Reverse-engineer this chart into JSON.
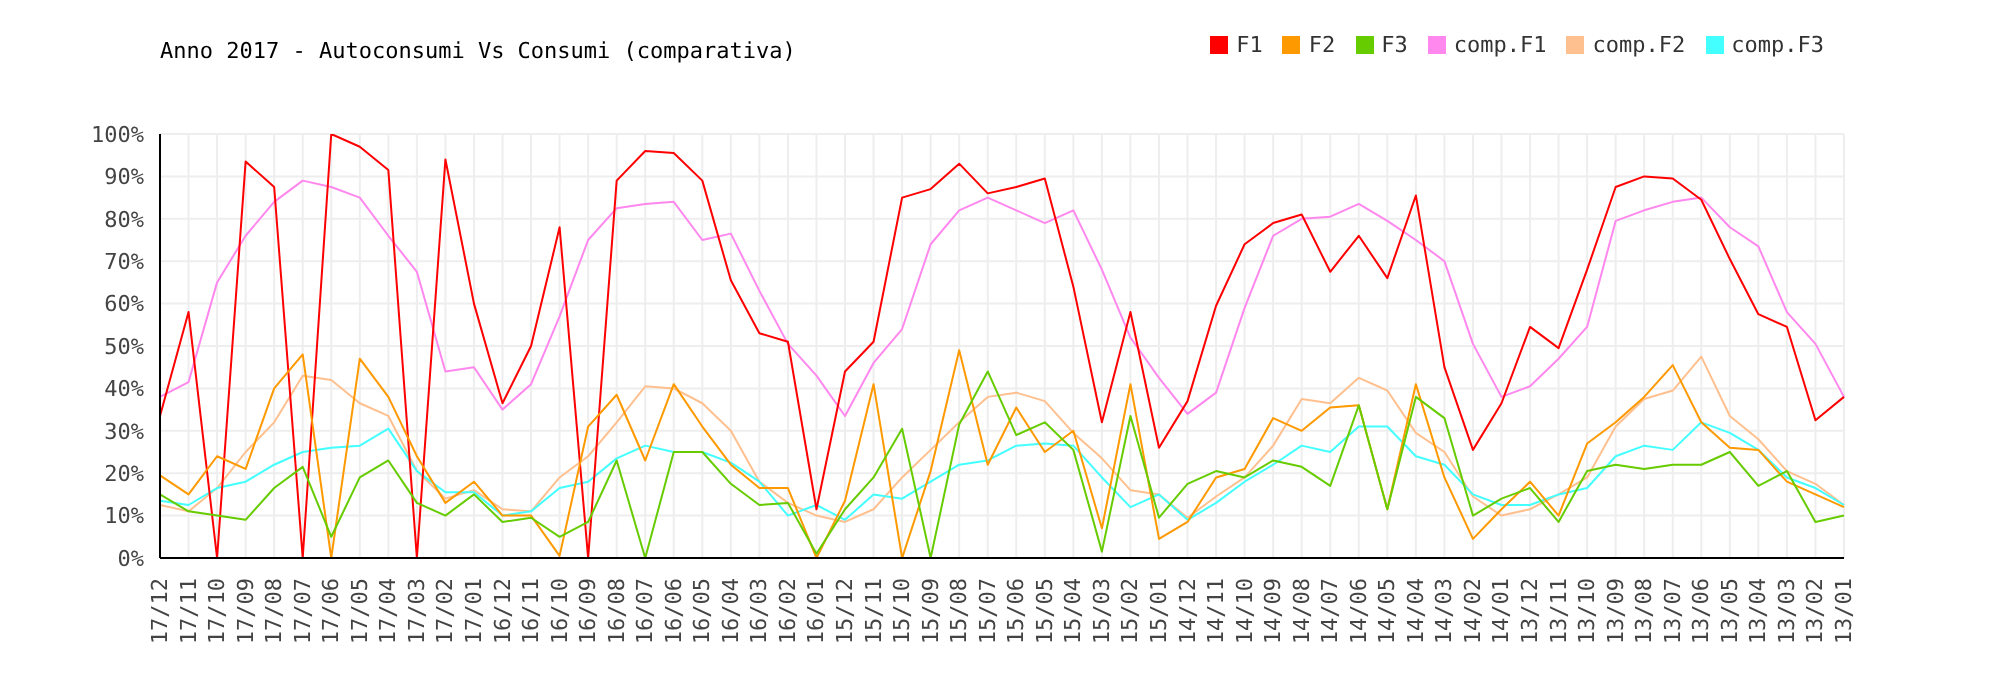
{
  "chart_data": {
    "type": "line",
    "title": "Anno 2017 - Autoconsumi Vs Consumi (comparativa)",
    "categories": [
      "17/12",
      "17/11",
      "17/10",
      "17/09",
      "17/08",
      "17/07",
      "17/06",
      "17/05",
      "17/04",
      "17/03",
      "17/02",
      "17/01",
      "16/12",
      "16/11",
      "16/10",
      "16/09",
      "16/08",
      "16/07",
      "16/06",
      "16/05",
      "16/04",
      "16/03",
      "16/02",
      "16/01",
      "15/12",
      "15/11",
      "15/10",
      "15/09",
      "15/08",
      "15/07",
      "15/06",
      "15/05",
      "15/04",
      "15/03",
      "15/02",
      "15/01",
      "14/12",
      "14/11",
      "14/10",
      "14/09",
      "14/08",
      "14/07",
      "14/06",
      "14/05",
      "14/04",
      "14/03",
      "14/02",
      "14/01",
      "13/12",
      "13/11",
      "13/10",
      "13/09",
      "13/08",
      "13/07",
      "13/06",
      "13/05",
      "13/04",
      "13/03",
      "13/02",
      "13/01"
    ],
    "series": [
      {
        "name": "comp.F1",
        "color": "#ff88ee",
        "values": [
          38,
          41.5,
          65,
          76,
          84,
          89,
          87.5,
          85,
          76,
          67.5,
          44,
          45,
          35,
          41,
          57,
          75,
          82.5,
          83.5,
          84,
          75,
          76.5,
          63,
          50.5,
          43,
          33.5,
          46,
          54,
          74,
          82,
          85,
          82,
          79,
          82,
          68,
          52,
          42.5,
          34,
          39,
          59,
          76,
          80,
          80.5,
          83.5,
          79.5,
          75,
          70,
          50.5,
          38,
          40.5,
          47,
          54.5,
          79.5,
          82,
          84,
          85,
          78,
          73.5,
          58,
          50.5,
          38
        ]
      },
      {
        "name": "comp.F2",
        "color": "#ffc090",
        "values": [
          12.5,
          11,
          16.5,
          25,
          32,
          43,
          42,
          36.5,
          33.5,
          20.5,
          14,
          16,
          11.5,
          11,
          19,
          24,
          32,
          40.5,
          40,
          36.5,
          30,
          18,
          13,
          10,
          8.5,
          11.5,
          19,
          25.5,
          32,
          38,
          39,
          37,
          29.5,
          23.5,
          16,
          15,
          9.5,
          14.5,
          19,
          26.5,
          37.5,
          36.5,
          42.5,
          39.5,
          29.5,
          25,
          14.5,
          10,
          11.5,
          15,
          19,
          31,
          37.5,
          39.5,
          47.5,
          33.5,
          28,
          20.5,
          17.5,
          12.5
        ]
      },
      {
        "name": "comp.F3",
        "color": "#44ffff",
        "values": [
          13.5,
          12.5,
          16.5,
          18,
          22,
          25,
          26,
          26.5,
          30.5,
          20.5,
          15.5,
          15.5,
          10,
          11,
          16.5,
          18,
          23.5,
          26.5,
          25,
          25,
          22.5,
          18,
          10,
          12.5,
          9,
          15,
          14,
          18,
          22,
          23,
          26.5,
          27,
          26.5,
          19,
          12,
          15,
          9,
          13,
          18,
          22,
          26.5,
          25,
          31,
          31,
          24,
          22,
          15,
          12.5,
          12.5,
          15,
          16.5,
          24,
          26.5,
          25.5,
          32,
          29.5,
          25.5,
          19,
          16.5,
          12.5
        ]
      },
      {
        "name": "F1",
        "color": "#ff0000",
        "values": [
          33.5,
          58,
          0,
          93.5,
          87.5,
          0,
          100,
          97,
          91.5,
          0,
          94,
          60,
          36.5,
          50,
          78,
          0,
          89,
          96,
          95.5,
          89,
          65.5,
          53,
          51,
          11.5,
          44,
          51,
          85,
          87,
          93,
          86,
          87.5,
          89.5,
          64,
          32,
          58,
          26,
          37,
          59.5,
          74,
          79,
          81,
          67.5,
          76,
          66,
          85.5,
          45,
          25.5,
          36.5,
          54.5,
          49.5,
          68,
          87.5,
          90,
          89.5,
          84.5,
          70.5,
          57.5,
          54.5,
          32.5,
          38
        ]
      },
      {
        "name": "F2",
        "color": "#ff9900",
        "values": [
          19.5,
          15,
          24,
          21,
          40,
          48,
          0,
          47,
          38,
          24,
          13,
          18,
          10,
          10,
          0.5,
          31,
          38.5,
          23,
          41,
          31,
          22,
          16.5,
          16.5,
          0,
          13.5,
          41,
          0,
          20.5,
          49,
          22,
          35.5,
          25,
          30,
          7,
          41,
          4.5,
          8.5,
          19,
          21,
          33,
          30,
          35.5,
          36,
          11.5,
          41,
          19,
          4.5,
          11.5,
          18,
          10,
          27,
          32,
          38,
          45.5,
          32,
          26,
          25.5,
          18,
          15,
          12
        ]
      },
      {
        "name": "F3",
        "color": "#66cc00",
        "values": [
          15,
          11,
          10,
          9,
          16.5,
          21.5,
          5,
          19,
          23,
          13,
          10,
          15,
          8.5,
          9.5,
          5,
          8.5,
          23,
          0,
          25,
          25,
          17.5,
          12.5,
          13,
          1,
          11.5,
          19,
          30.5,
          0,
          31.5,
          44,
          29,
          32,
          25.5,
          1.5,
          33.5,
          9.5,
          17.5,
          20.5,
          19,
          23,
          21.5,
          17,
          36,
          11.5,
          38,
          33,
          10,
          14,
          16.5,
          8.5,
          20.5,
          22,
          21,
          22,
          22,
          25,
          17,
          20.5,
          8.5,
          10
        ]
      }
    ],
    "ylim": [
      0,
      100
    ],
    "yticks": [
      {
        "value": 0,
        "label": "0%"
      },
      {
        "value": 10,
        "label": "10%"
      },
      {
        "value": 20,
        "label": "20%"
      },
      {
        "value": 30,
        "label": "30%"
      },
      {
        "value": 40,
        "label": "40%"
      },
      {
        "value": 50,
        "label": "50%"
      },
      {
        "value": 60,
        "label": "60%"
      },
      {
        "value": 70,
        "label": "70%"
      },
      {
        "value": 80,
        "label": "80%"
      },
      {
        "value": 90,
        "label": "90%"
      },
      {
        "value": 100,
        "label": "100%"
      }
    ],
    "grid": true,
    "legend": "top right"
  }
}
